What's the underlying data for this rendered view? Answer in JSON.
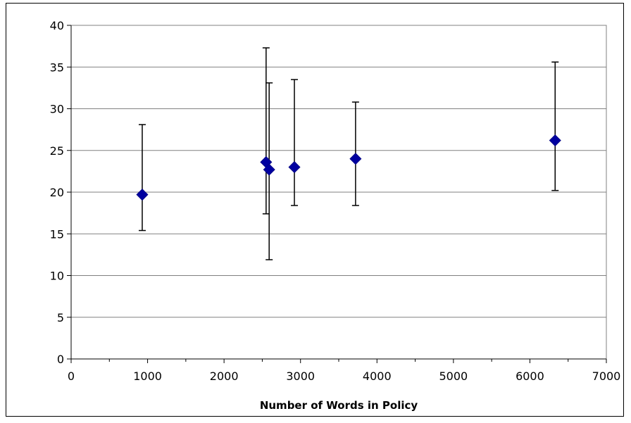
{
  "chart_data": {
    "type": "scatter",
    "title": "",
    "xlabel": "Number of Words in Policy",
    "ylabel": "",
    "xlim": [
      0,
      7000
    ],
    "ylim": [
      0,
      40
    ],
    "x_ticks": [
      "0",
      "1000",
      "2000",
      "3000",
      "4000",
      "5000",
      "6000",
      "7000"
    ],
    "y_ticks": [
      "0",
      "5",
      "10",
      "15",
      "20",
      "25",
      "30",
      "35",
      "40"
    ],
    "grid": "horizontal",
    "legend": "none",
    "marker": "diamond",
    "marker_color": "#0000a0",
    "points": [
      {
        "x": 930,
        "y": 19.7,
        "err_low": 15.4,
        "err_high": 28.1
      },
      {
        "x": 2550,
        "y": 23.6,
        "err_low": 17.4,
        "err_high": 37.3
      },
      {
        "x": 2590,
        "y": 22.7,
        "err_low": 11.9,
        "err_high": 33.1
      },
      {
        "x": 2920,
        "y": 23.0,
        "err_low": 18.4,
        "err_high": 33.5
      },
      {
        "x": 3720,
        "y": 24.0,
        "err_low": 18.4,
        "err_high": 30.8
      },
      {
        "x": 6330,
        "y": 26.2,
        "err_low": 20.2,
        "err_high": 35.6
      }
    ]
  }
}
